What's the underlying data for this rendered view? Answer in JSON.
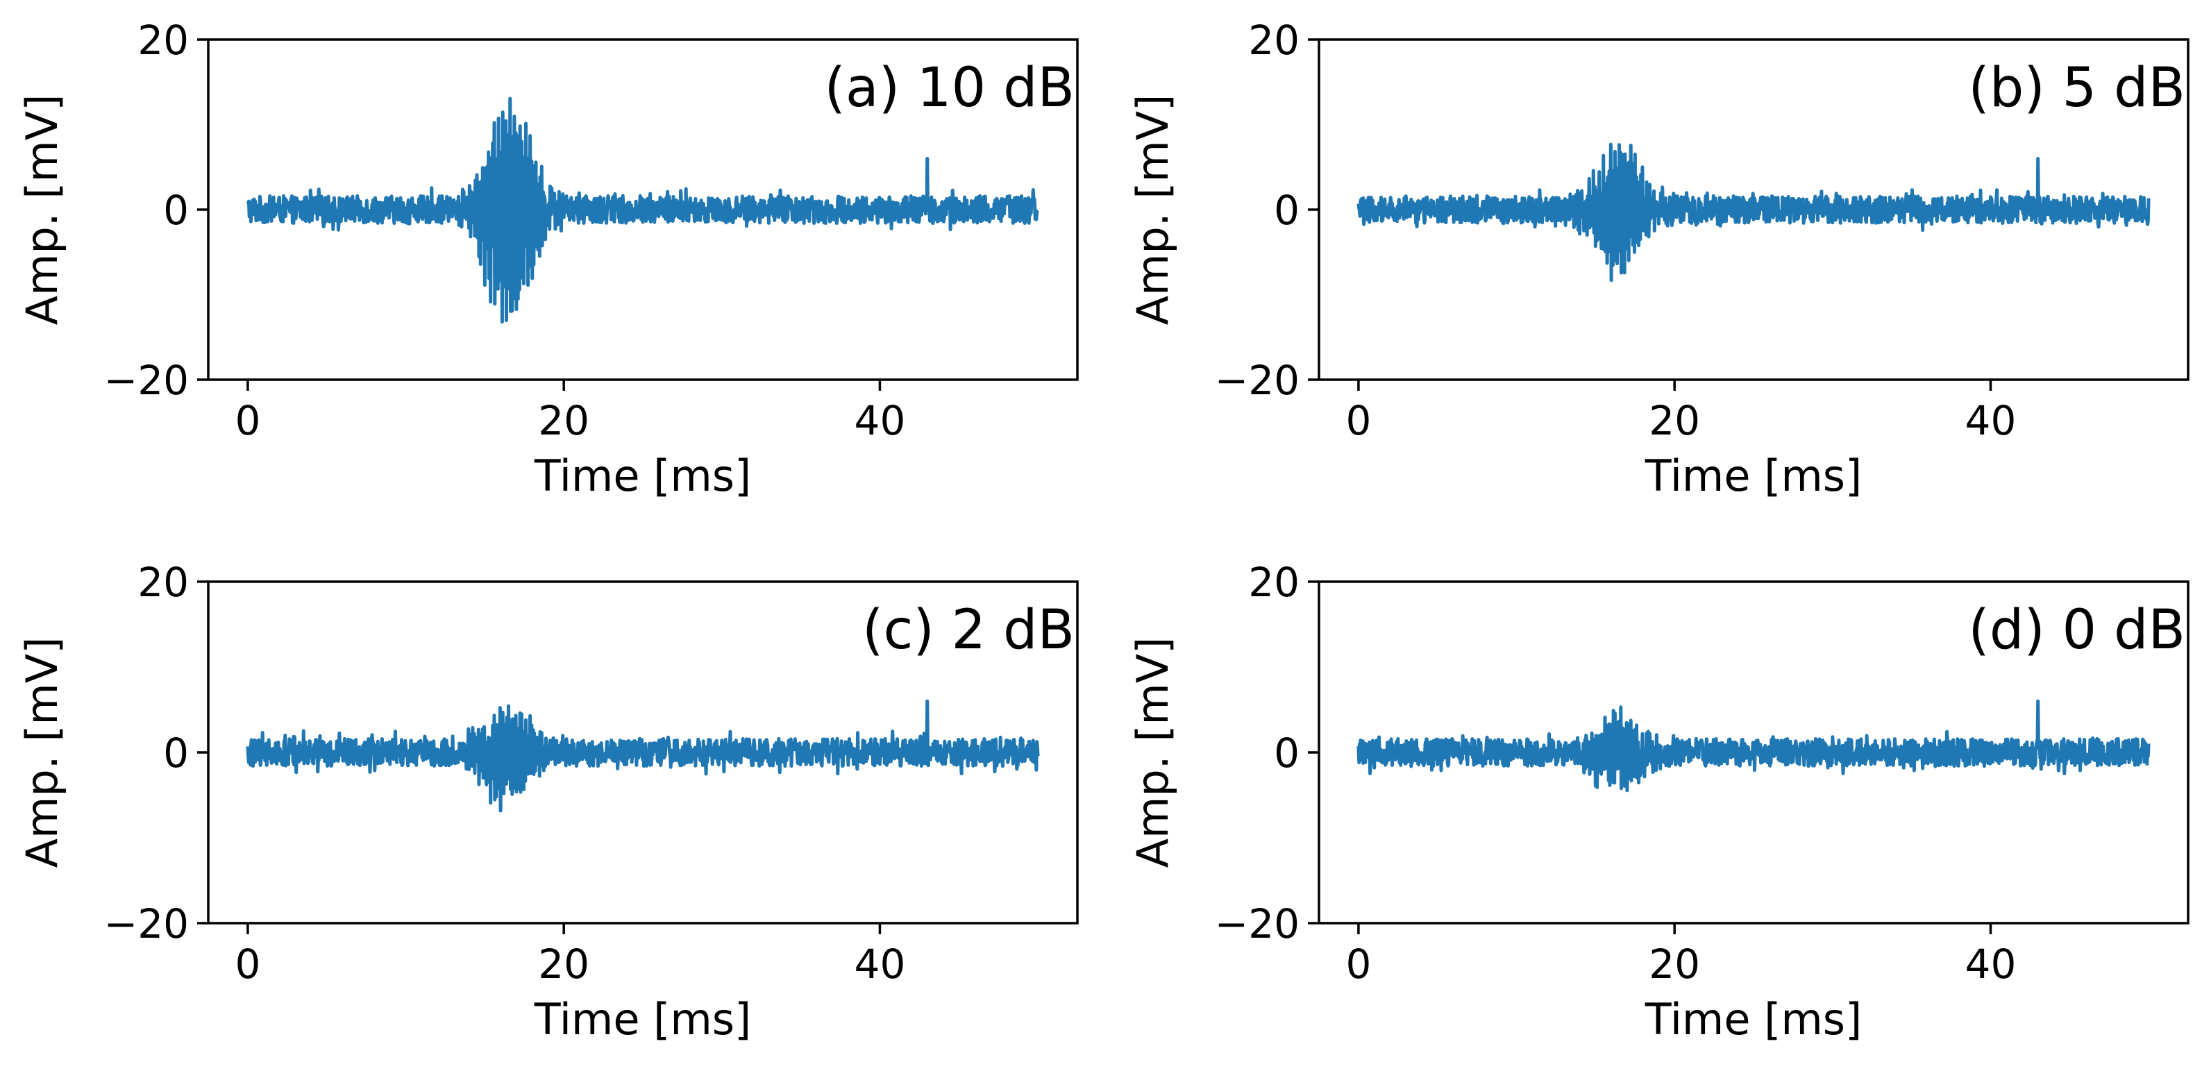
{
  "figure": {
    "line_color": "#1f77b4",
    "axis_color": "#000000",
    "background": "#ffffff"
  },
  "chart_data": [
    {
      "type": "line",
      "title": "(a) 10 dB",
      "xlabel": "Time [ms]",
      "ylabel": "Amp. [mV]",
      "xlim": [
        -2.5,
        52.5
      ],
      "ylim": [
        -20,
        20
      ],
      "x_ticks": [
        0,
        20,
        40
      ],
      "y_ticks": [
        -20,
        0,
        20
      ],
      "x_tick_labels": [
        "0",
        "20",
        "40"
      ],
      "y_tick_labels": [
        "−20",
        "0",
        "20"
      ],
      "grid": false,
      "signal": {
        "x_range": [
          0,
          50
        ],
        "noise_max_amplitude_mv": 5,
        "burst_time_range_ms": [
          14,
          19
        ],
        "burst_peak_mv": 16,
        "burst_min_mv": -17,
        "outlier_peak": {
          "time_ms": 43,
          "value_mv": 6
        }
      }
    },
    {
      "type": "line",
      "title": "(b) 5 dB",
      "xlabel": "Time [ms]",
      "ylabel": "Amp. [mV]",
      "xlim": [
        -2.5,
        52.5
      ],
      "ylim": [
        -20,
        20
      ],
      "x_ticks": [
        0,
        20,
        40
      ],
      "y_ticks": [
        -20,
        0,
        20
      ],
      "x_tick_labels": [
        "0",
        "20",
        "40"
      ],
      "y_tick_labels": [
        "−20",
        "0",
        "20"
      ],
      "grid": false,
      "signal": {
        "x_range": [
          0,
          50
        ],
        "noise_max_amplitude_mv": 5,
        "burst_time_range_ms": [
          14,
          19
        ],
        "burst_peak_mv": 9,
        "burst_min_mv": -9.5,
        "outlier_peak": {
          "time_ms": 43,
          "value_mv": 6
        }
      }
    },
    {
      "type": "line",
      "title": "(c) 2 dB",
      "xlabel": "Time [ms]",
      "ylabel": "Amp. [mV]",
      "xlim": [
        -2.5,
        52.5
      ],
      "ylim": [
        -20,
        20
      ],
      "x_ticks": [
        0,
        20,
        40
      ],
      "y_ticks": [
        -20,
        0,
        20
      ],
      "x_tick_labels": [
        "0",
        "20",
        "40"
      ],
      "y_tick_labels": [
        "−20",
        "0",
        "20"
      ],
      "grid": false,
      "signal": {
        "x_range": [
          0,
          50
        ],
        "noise_max_amplitude_mv": 5,
        "burst_time_range_ms": [
          14,
          19
        ],
        "burst_peak_mv": 6.5,
        "burst_min_mv": -7,
        "outlier_peak": {
          "time_ms": 43,
          "value_mv": 6
        }
      }
    },
    {
      "type": "line",
      "title": "(d) 0 dB",
      "xlabel": "Time [ms]",
      "ylabel": "Amp. [mV]",
      "xlim": [
        -2.5,
        52.5
      ],
      "ylim": [
        -20,
        20
      ],
      "x_ticks": [
        0,
        20,
        40
      ],
      "y_ticks": [
        -20,
        0,
        20
      ],
      "x_tick_labels": [
        "0",
        "20",
        "40"
      ],
      "y_tick_labels": [
        "−20",
        "0",
        "20"
      ],
      "grid": false,
      "signal": {
        "x_range": [
          0,
          50
        ],
        "noise_max_amplitude_mv": 5,
        "burst_time_range_ms": [
          14,
          19
        ],
        "burst_peak_mv": 5.5,
        "burst_min_mv": -5.5,
        "outlier_peak": {
          "time_ms": 43,
          "value_mv": 6
        }
      }
    }
  ]
}
